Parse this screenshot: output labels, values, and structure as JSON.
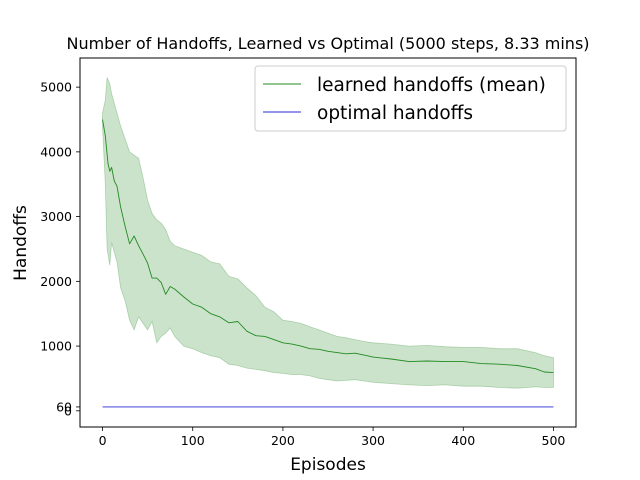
{
  "chart_data": {
    "type": "line",
    "title": "Number of Handoffs, Learned vs Optimal (5000 steps, 8.33 mins)",
    "xlabel": "Episodes",
    "ylabel": "Handoffs",
    "xlim": [
      -25,
      525
    ],
    "ylim": [
      -250,
      5450
    ],
    "xticks": [
      0,
      100,
      200,
      300,
      400,
      500
    ],
    "yticks": [
      0,
      60,
      1000,
      2000,
      3000,
      4000,
      5000
    ],
    "grid": false,
    "legend_position": "top-right",
    "colors": {
      "learned_line": "#228b22",
      "band_fill": "#2e8b2e",
      "optimal_line": "#2a2ad8"
    },
    "series": [
      {
        "name": "learned handoffs (mean)",
        "style": "line",
        "color": "#228b22",
        "x": [
          0,
          3,
          6,
          8,
          10,
          13,
          16,
          20,
          25,
          30,
          35,
          40,
          45,
          50,
          55,
          60,
          65,
          70,
          75,
          80,
          90,
          100,
          110,
          120,
          130,
          140,
          150,
          160,
          170,
          180,
          190,
          200,
          210,
          220,
          230,
          240,
          250,
          260,
          270,
          280,
          290,
          300,
          320,
          340,
          360,
          380,
          400,
          420,
          440,
          460,
          480,
          490,
          500
        ],
        "y": [
          4500,
          4250,
          3820,
          3700,
          3760,
          3550,
          3470,
          3150,
          2850,
          2580,
          2700,
          2550,
          2420,
          2280,
          2050,
          2050,
          1980,
          1800,
          1920,
          1880,
          1760,
          1650,
          1600,
          1500,
          1450,
          1360,
          1380,
          1230,
          1160,
          1150,
          1100,
          1050,
          1030,
          1000,
          960,
          950,
          920,
          900,
          880,
          890,
          860,
          830,
          800,
          760,
          770,
          760,
          760,
          730,
          720,
          700,
          650,
          600,
          590
        ]
      },
      {
        "name": "upper bound",
        "style": "band-upper",
        "x": [
          0,
          3,
          5,
          8,
          10,
          13,
          16,
          20,
          25,
          30,
          35,
          40,
          45,
          50,
          55,
          60,
          65,
          70,
          75,
          80,
          90,
          100,
          110,
          120,
          130,
          140,
          150,
          160,
          170,
          180,
          190,
          200,
          210,
          220,
          230,
          240,
          250,
          260,
          270,
          280,
          290,
          300,
          320,
          340,
          360,
          380,
          400,
          420,
          440,
          460,
          480,
          490,
          500
        ],
        "y": [
          4600,
          4800,
          5150,
          5050,
          4900,
          4750,
          4600,
          4400,
          4200,
          4000,
          3950,
          3900,
          3600,
          3250,
          3050,
          2950,
          2900,
          2800,
          2620,
          2550,
          2500,
          2450,
          2400,
          2300,
          2270,
          2080,
          2040,
          1900,
          1780,
          1600,
          1530,
          1400,
          1380,
          1350,
          1300,
          1250,
          1200,
          1150,
          1130,
          1100,
          1070,
          1050,
          1030,
          1000,
          1010,
          990,
          980,
          980,
          960,
          960,
          900,
          850,
          820
        ]
      },
      {
        "name": "lower bound",
        "style": "band-lower",
        "x": [
          0,
          3,
          5,
          8,
          10,
          13,
          16,
          20,
          25,
          30,
          35,
          40,
          45,
          50,
          55,
          60,
          65,
          70,
          75,
          80,
          90,
          100,
          110,
          120,
          130,
          140,
          150,
          160,
          170,
          180,
          190,
          200,
          210,
          220,
          230,
          240,
          250,
          260,
          270,
          280,
          290,
          300,
          320,
          340,
          360,
          380,
          400,
          420,
          440,
          460,
          480,
          490,
          500
        ],
        "y": [
          4400,
          3500,
          2500,
          2250,
          2600,
          2450,
          2300,
          1900,
          1700,
          1400,
          1250,
          1450,
          1350,
          1250,
          1380,
          1050,
          1150,
          1200,
          1280,
          1150,
          1000,
          960,
          900,
          850,
          820,
          720,
          700,
          660,
          640,
          620,
          590,
          580,
          560,
          560,
          540,
          500,
          480,
          460,
          470,
          480,
          460,
          440,
          420,
          400,
          390,
          400,
          380,
          380,
          360,
          350,
          370,
          360,
          360
        ]
      },
      {
        "name": "optimal handoffs",
        "style": "line",
        "color": "#2a2ad8",
        "x": [
          0,
          500
        ],
        "y": [
          60,
          60
        ]
      }
    ]
  }
}
